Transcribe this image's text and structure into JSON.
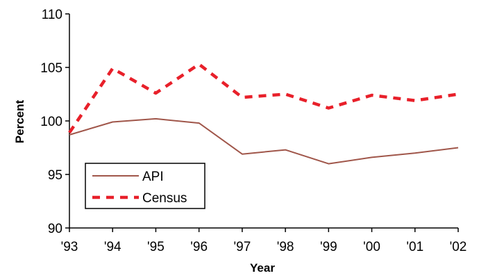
{
  "chart_data": {
    "type": "line",
    "categories": [
      "'93",
      "'94",
      "'95",
      "'96",
      "'97",
      "'98",
      "'99",
      "'00",
      "'01",
      "'02"
    ],
    "series": [
      {
        "name": "API",
        "values": [
          98.7,
          99.9,
          100.2,
          99.8,
          96.9,
          97.3,
          96.0,
          96.6,
          97.0,
          97.5
        ],
        "color": "#a0564a",
        "style": "solid"
      },
      {
        "name": "Census",
        "values": [
          98.9,
          104.9,
          102.6,
          105.3,
          102.2,
          102.5,
          101.2,
          102.4,
          101.9,
          102.5
        ],
        "color": "#e8202a",
        "style": "dashed"
      }
    ],
    "title": "",
    "xlabel": "Year",
    "ylabel": "Percent",
    "ylim": [
      90,
      110
    ],
    "yticks": [
      90,
      95,
      100,
      105,
      110
    ],
    "grid": false,
    "legend_position": "bottom-left"
  }
}
